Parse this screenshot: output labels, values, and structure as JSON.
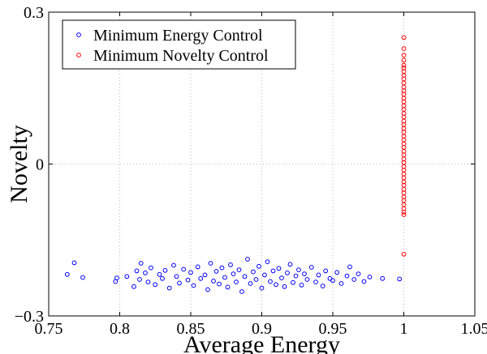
{
  "chart_data": {
    "type": "scatter",
    "xlabel": "Average Energy",
    "ylabel": "Novelty",
    "xlim": [
      0.75,
      1.05
    ],
    "ylim": [
      -0.3,
      0.3
    ],
    "x_ticks": [
      "0.75",
      "0.8",
      "0.85",
      "0.9",
      "0.95",
      "1",
      "1.05"
    ],
    "y_ticks": [
      "−0.3",
      "0",
      "0.3"
    ],
    "grid": true,
    "legend_position": "top-left",
    "series": [
      {
        "name": "Minimum Energy Control",
        "color": "#0000ff",
        "marker": "open-circle",
        "points": [
          [
            0.763,
            -0.218
          ],
          [
            0.768,
            -0.195
          ],
          [
            0.774,
            -0.224
          ],
          [
            0.797,
            -0.232
          ],
          [
            0.798,
            -0.225
          ],
          [
            0.805,
            -0.222
          ],
          [
            0.81,
            -0.242
          ],
          [
            0.812,
            -0.211
          ],
          [
            0.814,
            -0.228
          ],
          [
            0.815,
            -0.196
          ],
          [
            0.818,
            -0.215
          ],
          [
            0.82,
            -0.233
          ],
          [
            0.822,
            -0.205
          ],
          [
            0.825,
            -0.238
          ],
          [
            0.828,
            -0.218
          ],
          [
            0.83,
            -0.226
          ],
          [
            0.832,
            -0.21
          ],
          [
            0.835,
            -0.245
          ],
          [
            0.838,
            -0.2
          ],
          [
            0.84,
            -0.222
          ],
          [
            0.842,
            -0.235
          ],
          [
            0.845,
            -0.208
          ],
          [
            0.848,
            -0.229
          ],
          [
            0.85,
            -0.214
          ],
          [
            0.852,
            -0.24
          ],
          [
            0.855,
            -0.203
          ],
          [
            0.857,
            -0.226
          ],
          [
            0.86,
            -0.219
          ],
          [
            0.862,
            -0.248
          ],
          [
            0.864,
            -0.196
          ],
          [
            0.866,
            -0.231
          ],
          [
            0.868,
            -0.212
          ],
          [
            0.87,
            -0.237
          ],
          [
            0.872,
            -0.205
          ],
          [
            0.874,
            -0.224
          ],
          [
            0.876,
            -0.243
          ],
          [
            0.878,
            -0.199
          ],
          [
            0.88,
            -0.217
          ],
          [
            0.882,
            -0.233
          ],
          [
            0.884,
            -0.209
          ],
          [
            0.886,
            -0.252
          ],
          [
            0.888,
            -0.222
          ],
          [
            0.89,
            -0.188
          ],
          [
            0.892,
            -0.236
          ],
          [
            0.894,
            -0.213
          ],
          [
            0.896,
            -0.228
          ],
          [
            0.898,
            -0.202
          ],
          [
            0.9,
            -0.245
          ],
          [
            0.902,
            -0.219
          ],
          [
            0.904,
            -0.193
          ],
          [
            0.906,
            -0.232
          ],
          [
            0.908,
            -0.211
          ],
          [
            0.91,
            -0.238
          ],
          [
            0.912,
            -0.206
          ],
          [
            0.914,
            -0.225
          ],
          [
            0.916,
            -0.242
          ],
          [
            0.918,
            -0.215
          ],
          [
            0.92,
            -0.198
          ],
          [
            0.922,
            -0.234
          ],
          [
            0.924,
            -0.221
          ],
          [
            0.926,
            -0.209
          ],
          [
            0.928,
            -0.239
          ],
          [
            0.93,
            -0.217
          ],
          [
            0.932,
            -0.228
          ],
          [
            0.935,
            -0.204
          ],
          [
            0.938,
            -0.233
          ],
          [
            0.94,
            -0.219
          ],
          [
            0.943,
            -0.241
          ],
          [
            0.945,
            -0.211
          ],
          [
            0.948,
            -0.226
          ],
          [
            0.95,
            -0.23
          ],
          [
            0.953,
            -0.214
          ],
          [
            0.956,
            -0.236
          ],
          [
            0.96,
            -0.221
          ],
          [
            0.962,
            -0.203
          ],
          [
            0.965,
            -0.228
          ],
          [
            0.968,
            -0.217
          ],
          [
            0.972,
            -0.232
          ],
          [
            0.976,
            -0.223
          ],
          [
            0.985,
            -0.226
          ],
          [
            0.997,
            -0.227
          ]
        ]
      },
      {
        "name": "Minimum Novelty Control",
        "color": "#ff0000",
        "marker": "open-circle",
        "points": [
          [
            1.0,
            0.25
          ],
          [
            1.0,
            0.228
          ],
          [
            1.0,
            0.215
          ],
          [
            1.0,
            0.205
          ],
          [
            1.0,
            0.195
          ],
          [
            1.0,
            0.19
          ],
          [
            1.0,
            0.183
          ],
          [
            1.0,
            0.175
          ],
          [
            1.0,
            0.168
          ],
          [
            1.0,
            0.16
          ],
          [
            1.0,
            0.152
          ],
          [
            1.0,
            0.145
          ],
          [
            1.0,
            0.138
          ],
          [
            1.0,
            0.13
          ],
          [
            1.0,
            0.123
          ],
          [
            1.0,
            0.115
          ],
          [
            1.0,
            0.108
          ],
          [
            1.0,
            0.1
          ],
          [
            1.0,
            0.093
          ],
          [
            1.0,
            0.085
          ],
          [
            1.0,
            0.078
          ],
          [
            1.0,
            0.07
          ],
          [
            1.0,
            0.063
          ],
          [
            1.0,
            0.055
          ],
          [
            1.0,
            0.048
          ],
          [
            1.0,
            0.04
          ],
          [
            1.0,
            0.033
          ],
          [
            1.0,
            0.025
          ],
          [
            1.0,
            0.018
          ],
          [
            1.0,
            0.01
          ],
          [
            1.0,
            0.003
          ],
          [
            1.0,
            -0.005
          ],
          [
            1.0,
            -0.012
          ],
          [
            1.0,
            -0.02
          ],
          [
            1.0,
            -0.027
          ],
          [
            1.0,
            -0.035
          ],
          [
            1.0,
            -0.042
          ],
          [
            1.0,
            -0.05
          ],
          [
            1.0,
            -0.057
          ],
          [
            1.0,
            -0.065
          ],
          [
            1.0,
            -0.072
          ],
          [
            1.0,
            -0.08
          ],
          [
            1.0,
            -0.088
          ],
          [
            1.0,
            -0.095
          ],
          [
            1.0,
            -0.1
          ],
          [
            1.0,
            -0.178
          ]
        ]
      }
    ]
  }
}
